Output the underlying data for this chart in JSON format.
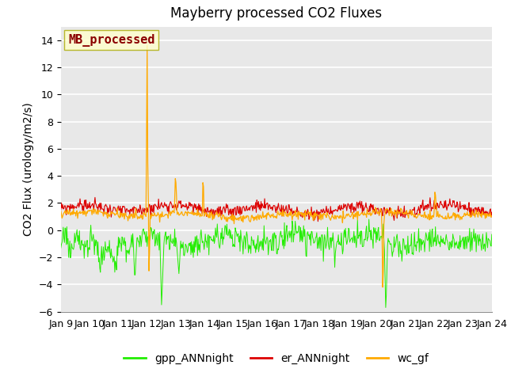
{
  "title": "Mayberry processed CO2 Fluxes",
  "ylabel": "CO2 Flux (urology/m2/s)",
  "ylim": [
    -6,
    15
  ],
  "yticks": [
    -6,
    -4,
    -2,
    0,
    2,
    4,
    6,
    8,
    10,
    12,
    14
  ],
  "xtick_labels": [
    "Jan 9",
    "Jan 10",
    "Jan 11",
    "Jan 12",
    "Jan 13",
    "Jan 14",
    "Jan 15",
    "Jan 16",
    "Jan 17",
    "Jan 18",
    "Jan 19",
    "Jan 20",
    "Jan 21",
    "Jan 22",
    "Jan 23",
    "Jan 24"
  ],
  "legend_label_inner": "MB_processed",
  "legend_labels": [
    "gpp_ANNnight",
    "er_ANNnight",
    "wc_gf"
  ],
  "line_colors": [
    "#22ee00",
    "#dd0000",
    "#ffaa00"
  ],
  "inner_legend_color_text": "#8b0000",
  "inner_legend_bg": "#ffffcc",
  "inner_legend_edge": "#aaaa00",
  "bg_color": "#e8e8e8",
  "grid_color": "#ffffff",
  "title_fontsize": 12,
  "axis_fontsize": 10,
  "tick_fontsize": 9,
  "legend_fontsize": 10
}
